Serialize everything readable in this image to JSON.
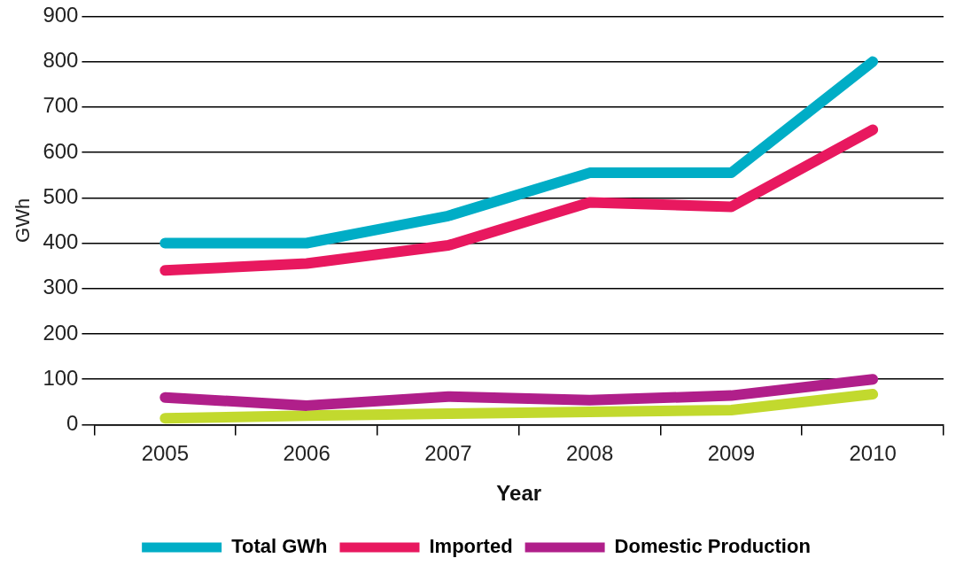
{
  "chart_data": {
    "type": "line",
    "xlabel": "Year",
    "ylabel": "GWh",
    "categories": [
      "2005",
      "2006",
      "2007",
      "2008",
      "2009",
      "2010"
    ],
    "series": [
      {
        "name": "Total GWh",
        "color": "#00adc6",
        "values": [
          400,
          400,
          460,
          555,
          555,
          800
        ]
      },
      {
        "name": "Imported",
        "color": "#e8185f",
        "values": [
          340,
          355,
          395,
          490,
          480,
          650
        ]
      },
      {
        "name": "Domestic Production",
        "color": "#b01f8a",
        "values": [
          60,
          42,
          62,
          54,
          64,
          100
        ]
      },
      {
        "color": "#c2d92e",
        "values": [
          14,
          20,
          24,
          28,
          32,
          67
        ]
      }
    ],
    "ylim": [
      0,
      900
    ],
    "yticks": [
      0,
      100,
      200,
      300,
      400,
      500,
      600,
      700,
      800,
      900
    ],
    "grid": "y",
    "legend": "bottom",
    "marker": "none",
    "line_style": "solid"
  }
}
